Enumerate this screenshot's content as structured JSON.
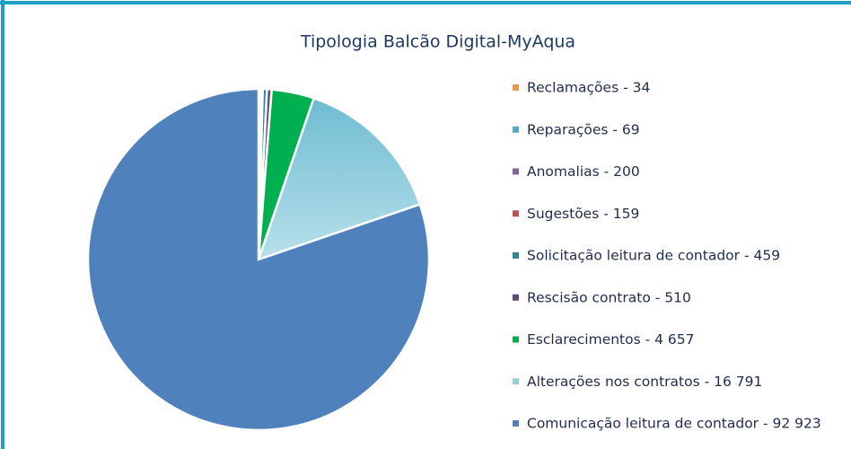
{
  "chart_data": {
    "type": "pie",
    "title": "Tipologia Balcão Digital-MyAqua",
    "categories": [
      "Reclamações - 34",
      "Reparações - 69",
      "Anomalias - 200",
      "Sugestões - 159",
      "Solicitação leitura de contador - 459",
      "Rescisão contrato - 510",
      "Esclarecimentos - 4 657",
      "Alterações nos contratos - 16 791",
      "Comunicação leitura de contador - 92 923"
    ],
    "values": [
      34,
      69,
      200,
      159,
      459,
      510,
      4657,
      16791,
      92923
    ],
    "colors": [
      "#f79646",
      "#4bacc6",
      "#8064a2",
      "#c0504d",
      "#31859c",
      "#5f497a",
      "#00b050",
      "#92cddc",
      "#4f81bd"
    ],
    "legend": "right"
  }
}
